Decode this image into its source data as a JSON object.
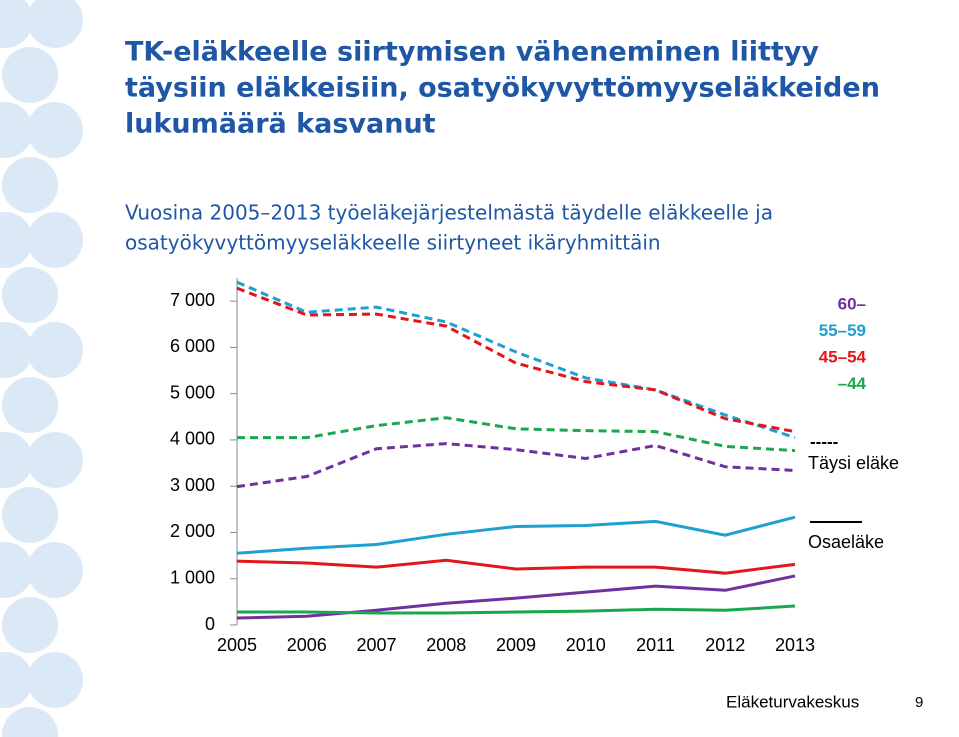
{
  "chart_data": {
    "type": "line",
    "title": [
      "TK-eläkkeelle siirtymisen väheneminen liittyy",
      "täysiin eläkkeisiin, osatyökyvyttömyyseläkkeiden",
      "lukumäärä kasvanut"
    ],
    "subtitle": [
      "Vuosina 2005–2013 työeläkejärjestelmästä täydelle eläkkeelle ja",
      "osatyökyvyttömyyseläkkeelle siirtyneet ikäryhmittäin"
    ],
    "x": [
      2005,
      2006,
      2007,
      2008,
      2009,
      2010,
      2011,
      2012,
      2013
    ],
    "xlim": [
      2005,
      2013
    ],
    "ylim": [
      0,
      7500
    ],
    "yticks": [
      0,
      {
        "value": 1000,
        "label": "1 000"
      },
      {
        "value": 2000,
        "label": "2 000"
      },
      {
        "value": 3000,
        "label": "3 000"
      },
      {
        "value": 4000,
        "label": "4 000"
      },
      {
        "value": 5000,
        "label": "5 000"
      },
      {
        "value": 6000,
        "label": "6 000"
      },
      {
        "value": 7000,
        "label": "7 000"
      }
    ],
    "line_styles": [
      {
        "name": "Täysi eläke",
        "sample": "-----",
        "dashed": true
      },
      {
        "name": "Osaeläke",
        "dashed": false
      }
    ],
    "series": [
      {
        "name": "60–",
        "color": "#7030a0",
        "values": [
          [
            2990,
            3210,
            3810,
            3920,
            3790,
            3600,
            3880,
            3420,
            3340
          ],
          [
            150,
            190,
            320,
            470,
            580,
            710,
            840,
            750,
            1060
          ]
        ]
      },
      {
        "name": "55–59",
        "color": "#1ea0d2",
        "values": [
          [
            7410,
            6760,
            6870,
            6550,
            5900,
            5340,
            5080,
            4540,
            4050
          ],
          [
            1550,
            1660,
            1740,
            1960,
            2130,
            2150,
            2240,
            1940,
            2330
          ]
        ]
      },
      {
        "name": "45–54",
        "color": "#e3161b",
        "values": [
          [
            7280,
            6700,
            6720,
            6460,
            5660,
            5260,
            5080,
            4460,
            4180
          ],
          [
            1380,
            1340,
            1250,
            1400,
            1210,
            1250,
            1250,
            1120,
            1310
          ]
        ]
      },
      {
        "name": "–44",
        "color": "#1aa84f",
        "values": [
          [
            4050,
            4050,
            4310,
            4480,
            4240,
            4200,
            4180,
            3860,
            3770
          ],
          [
            280,
            280,
            260,
            260,
            280,
            300,
            340,
            320,
            410
          ]
        ]
      }
    ]
  },
  "footer": {
    "organization": "Eläketurvakeskus",
    "page": "9"
  }
}
